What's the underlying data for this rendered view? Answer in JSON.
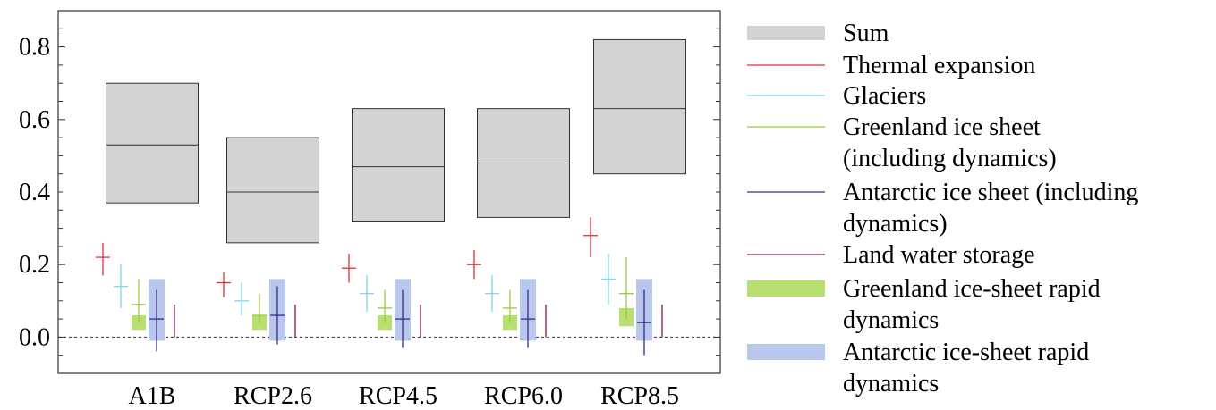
{
  "colors": {
    "sum": "#d3d3d3",
    "thermal": "#e0303a",
    "glaciers": "#7fd6f2",
    "greenland": "#9acc3c",
    "antarctic": "#3a2a8a",
    "landwater": "#8c1a5a",
    "greenland_rapid": "#b8e070",
    "antarctic_rapid": "#b7c8ec"
  },
  "chart_data": {
    "type": "box",
    "categories": [
      "A1B",
      "RCP2.6",
      "RCP4.5",
      "RCP6.0",
      "RCP8.5"
    ],
    "ylim": [
      -0.1,
      0.9
    ],
    "yticks": [
      0.0,
      0.2,
      0.4,
      0.6,
      0.8
    ],
    "ytick_labels": [
      "0.0",
      "0.2",
      "0.4",
      "0.6",
      "0.8"
    ],
    "zero_line": "dashed",
    "series": [
      {
        "name": "Sum",
        "kind": "box",
        "color_key": "sum",
        "low": [
          0.37,
          0.26,
          0.32,
          0.33,
          0.45
        ],
        "median": [
          0.53,
          0.4,
          0.47,
          0.48,
          0.63
        ],
        "high": [
          0.7,
          0.55,
          0.63,
          0.63,
          0.82
        ]
      },
      {
        "name": "Thermal expansion",
        "kind": "cross",
        "color_key": "thermal",
        "low": [
          0.17,
          0.11,
          0.15,
          0.16,
          0.22
        ],
        "median": [
          0.22,
          0.15,
          0.19,
          0.2,
          0.28
        ],
        "high": [
          0.26,
          0.18,
          0.23,
          0.24,
          0.33
        ]
      },
      {
        "name": "Glaciers",
        "kind": "cross",
        "color_key": "glaciers",
        "low": [
          0.08,
          0.06,
          0.07,
          0.07,
          0.09
        ],
        "median": [
          0.14,
          0.1,
          0.12,
          0.12,
          0.16
        ],
        "high": [
          0.2,
          0.15,
          0.17,
          0.17,
          0.23
        ]
      },
      {
        "name": "Greenland ice sheet (including dynamics)",
        "kind": "cross",
        "color_key": "greenland",
        "low": [
          0.04,
          0.04,
          0.04,
          0.04,
          0.05
        ],
        "median": [
          0.09,
          0.06,
          0.08,
          0.08,
          0.12
        ],
        "high": [
          0.16,
          0.12,
          0.13,
          0.13,
          0.22
        ]
      },
      {
        "name": "Antarctic ice sheet (including dynamics)",
        "kind": "cross",
        "color_key": "antarctic",
        "low": [
          -0.04,
          -0.02,
          -0.03,
          -0.03,
          -0.05
        ],
        "median": [
          0.05,
          0.06,
          0.05,
          0.05,
          0.04
        ],
        "high": [
          0.13,
          0.14,
          0.13,
          0.13,
          0.13
        ]
      },
      {
        "name": "Land water storage",
        "kind": "line",
        "color_key": "landwater",
        "low": [
          0.0,
          0.0,
          0.0,
          0.0,
          0.0
        ],
        "high": [
          0.09,
          0.09,
          0.09,
          0.09,
          0.09
        ]
      },
      {
        "name": "Greenland ice-sheet rapid dynamics",
        "kind": "bar",
        "color_key": "greenland_rapid",
        "low": [
          0.02,
          0.02,
          0.02,
          0.02,
          0.03
        ],
        "high": [
          0.06,
          0.06,
          0.06,
          0.06,
          0.08
        ]
      },
      {
        "name": "Antarctic ice-sheet rapid dynamics",
        "kind": "bar",
        "color_key": "antarctic_rapid",
        "low": [
          -0.01,
          -0.01,
          -0.01,
          -0.01,
          -0.01
        ],
        "high": [
          0.16,
          0.16,
          0.16,
          0.16,
          0.16
        ]
      }
    ]
  },
  "legend": [
    {
      "lines": [
        "Sum"
      ],
      "color_key": "sum",
      "kind": "box"
    },
    {
      "lines": [
        "Thermal expansion"
      ],
      "color_key": "thermal",
      "kind": "line"
    },
    {
      "lines": [
        "Glaciers"
      ],
      "color_key": "glaciers",
      "kind": "line"
    },
    {
      "lines": [
        "Greenland ice sheet",
        "(including dynamics)"
      ],
      "color_key": "greenland",
      "kind": "line"
    },
    {
      "lines": [
        "Antarctic ice sheet (including",
        "dynamics)"
      ],
      "color_key": "antarctic",
      "kind": "line"
    },
    {
      "lines": [
        "Land water storage"
      ],
      "color_key": "landwater",
      "kind": "line"
    },
    {
      "lines": [
        "Greenland ice-sheet rapid",
        "dynamics"
      ],
      "color_key": "greenland_rapid",
      "kind": "bar"
    },
    {
      "lines": [
        "Antarctic ice-sheet rapid",
        "dynamics"
      ],
      "color_key": "antarctic_rapid",
      "kind": "bar"
    }
  ]
}
